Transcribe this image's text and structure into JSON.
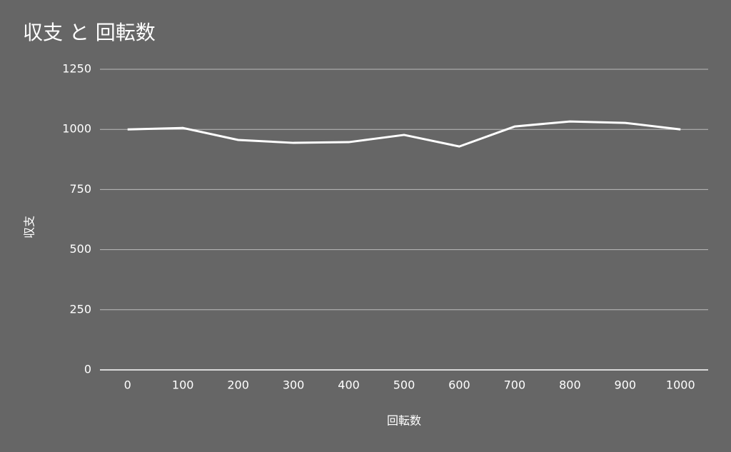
{
  "chart_data": {
    "type": "line",
    "title": "収支 と 回転数",
    "x_label": "回転数",
    "y_label": "収支",
    "categories": [
      "0",
      "100",
      "200",
      "300",
      "400",
      "500",
      "600",
      "700",
      "800",
      "900",
      "1000"
    ],
    "series": [
      {
        "color": "#ffffff",
        "values": [
          1000,
          1006,
          956,
          944,
          947,
          977,
          929,
          1012,
          1033,
          1027,
          1000
        ]
      }
    ],
    "ylim": [
      0,
      1250
    ],
    "yticks": [
      0,
      250,
      500,
      750,
      1000,
      1250
    ],
    "grid": true
  }
}
